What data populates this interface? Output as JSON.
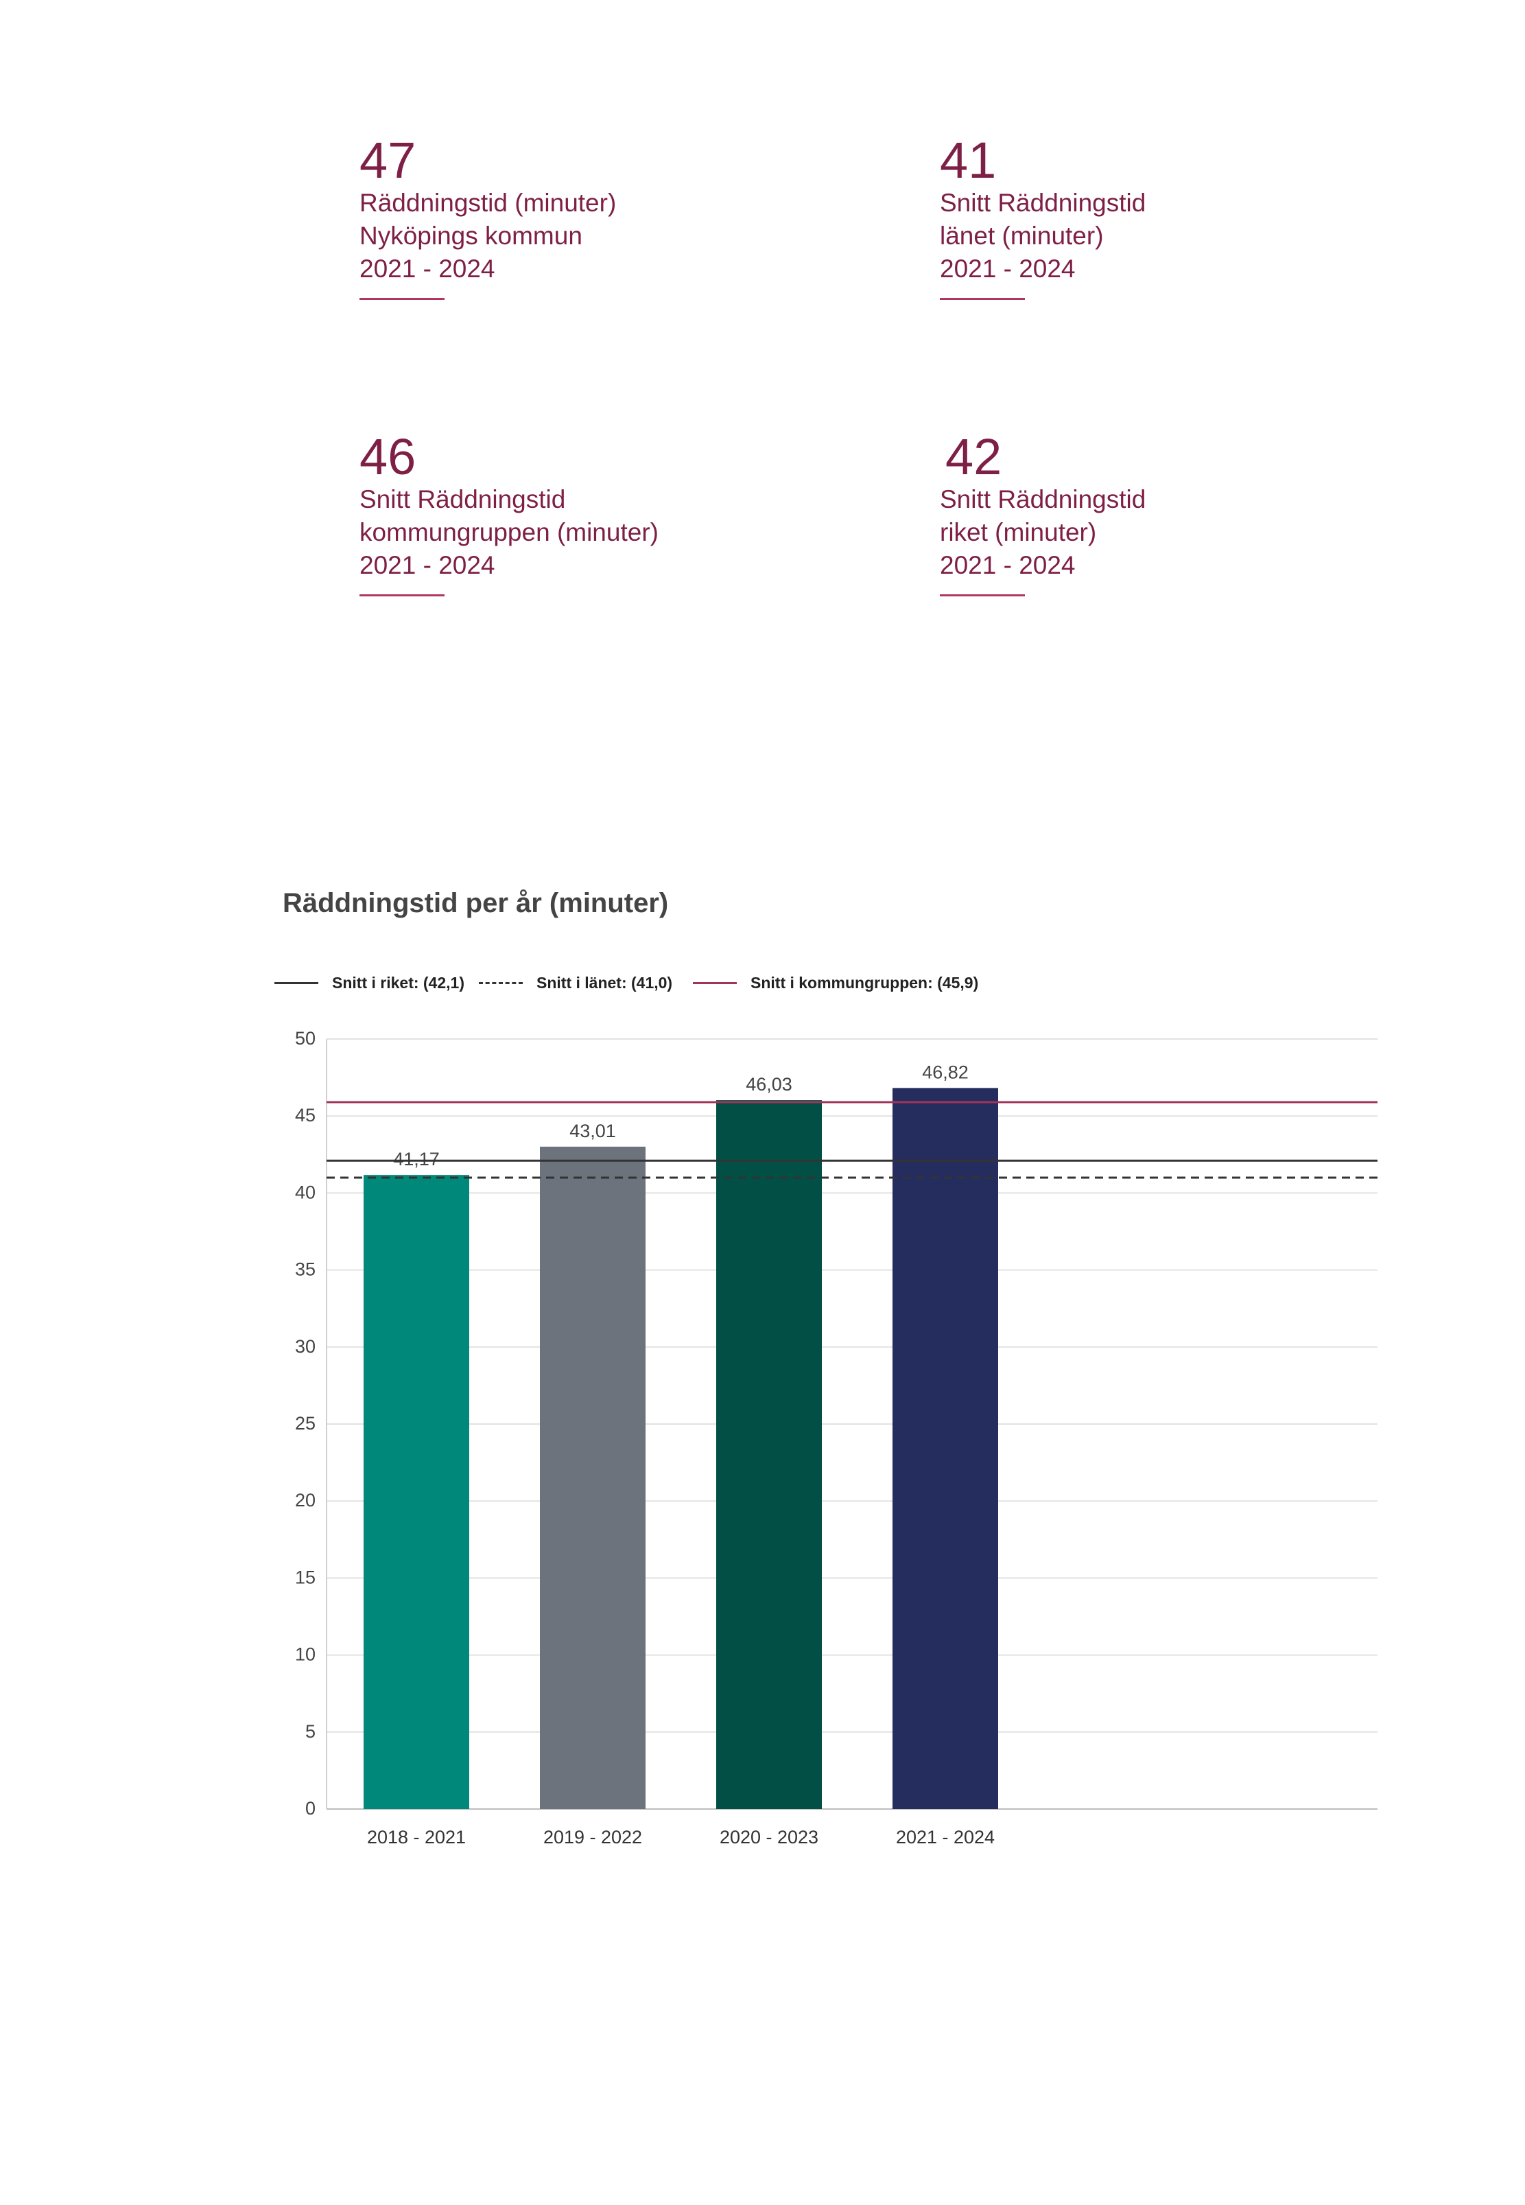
{
  "kpis": [
    {
      "value": "47",
      "lines": [
        "Räddningstid (minuter)",
        "Nyköpings kommun",
        "2021 - 2024"
      ]
    },
    {
      "value": "41",
      "lines": [
        "Snitt Räddningstid",
        "länet (minuter)",
        "2021 - 2024"
      ]
    },
    {
      "value": "46",
      "lines": [
        "Snitt Räddningstid",
        "kommungruppen (minuter)",
        "2021 - 2024"
      ]
    },
    {
      "value": "42",
      "lines": [
        "Snitt Räddningstid",
        "riket (minuter)",
        "2021 - 2024"
      ]
    }
  ],
  "legend": {
    "riket": "Snitt i riket: (42,1)",
    "lanet": "Snitt i länet: (41,0)",
    "kommungruppen": "Snitt i kommungruppen: (45,9)"
  },
  "chart_data": {
    "type": "bar",
    "title": "Räddningstid per år (minuter)",
    "categories": [
      "2018 - 2021",
      "2019 - 2022",
      "2020 - 2023",
      "2021 - 2024"
    ],
    "values": [
      41.17,
      43.01,
      46.03,
      46.82
    ],
    "value_labels": [
      "41,17",
      "43,01",
      "46,03",
      "46,82"
    ],
    "bar_colors": [
      "#00887a",
      "#6d737c",
      "#024f45",
      "#252d5e"
    ],
    "ylim": [
      0,
      50
    ],
    "yticks": [
      0,
      5,
      10,
      15,
      20,
      25,
      30,
      35,
      40,
      45,
      50
    ],
    "reference_lines": [
      {
        "name": "Snitt i riket",
        "value": 42.1,
        "style": "solid",
        "color": "#333333"
      },
      {
        "name": "Snitt i länet",
        "value": 41.0,
        "style": "dashed",
        "color": "#333333"
      },
      {
        "name": "Snitt i kommungruppen",
        "value": 45.9,
        "style": "solid",
        "color": "#a0355a"
      }
    ],
    "grid": true,
    "legend_position": "top-left"
  }
}
